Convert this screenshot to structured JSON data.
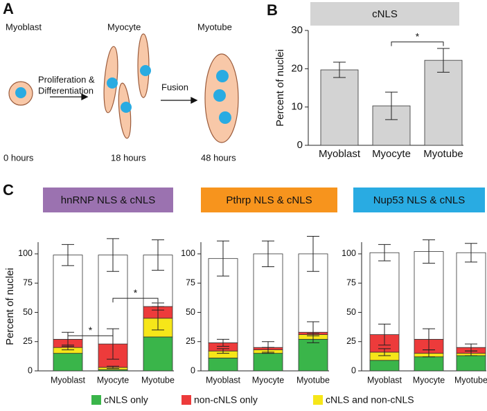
{
  "panel_labels": [
    "A",
    "B",
    "C"
  ],
  "panel_a": {
    "stages": [
      "Myoblast",
      "Myocyte",
      "Myotube"
    ],
    "times": [
      "0 hours",
      "18 hours",
      "48 hours"
    ],
    "arrows": [
      "Proliferation &",
      "Differentiation",
      "Fusion"
    ]
  },
  "chart_data": [
    {
      "type": "bar",
      "title": "cNLS",
      "title_color": "#d4d4d4",
      "ylabel": "Percent of nuclei",
      "categories": [
        "Myoblast",
        "Myocyte",
        "Myotube"
      ],
      "values": [
        19.7,
        10.3,
        22.2
      ],
      "errors": [
        2,
        3.6,
        3.1
      ],
      "color": "#d3d3d3",
      "ylim": [
        0,
        30
      ],
      "yticks": [
        0,
        10,
        20,
        30
      ],
      "significance": [
        {
          "between": [
            1,
            2
          ],
          "label": "*",
          "y": 27
        }
      ]
    },
    {
      "type": "stacked_bar",
      "title": "hnRNP NLS & cNLS",
      "title_color": "#9b72b0",
      "ylabel": "Percent of nuclei",
      "categories": [
        "Myoblast",
        "Myocyte",
        "Myotube"
      ],
      "ylim": [
        0,
        110
      ],
      "yticks": [
        0,
        25,
        50,
        75,
        100
      ],
      "legend": true,
      "series": [
        {
          "name": "cNLS only",
          "color": "#3ab54a",
          "values": [
            15,
            1,
            29
          ]
        },
        {
          "name": "cNLS and non-cNLS",
          "color": "#f6e619",
          "values": [
            5,
            2,
            16
          ],
          "errors": [
            2,
            1,
            10
          ]
        },
        {
          "name": "non-cNLS only",
          "color": "#ed3b3b",
          "values": [
            7,
            20,
            10
          ],
          "errors": [
            6,
            13,
            3
          ]
        },
        {
          "color": "#ffffff",
          "values": [
            72,
            76,
            44
          ],
          "errors": [
            9,
            14,
            13
          ]
        }
      ],
      "significance": [
        {
          "between": [
            0,
            1
          ],
          "label": "*",
          "y": 30
        },
        {
          "between": [
            1,
            2
          ],
          "label": "*",
          "y": 62
        }
      ]
    },
    {
      "type": "stacked_bar",
      "title": "Pthrp NLS & cNLS",
      "title_color": "#f7941d",
      "categories": [
        "Myoblast",
        "Myocyte",
        "Myotube"
      ],
      "ylim": [
        0,
        110
      ],
      "yticks": [
        0,
        25,
        50,
        75,
        100
      ],
      "series": [
        {
          "name": "cNLS only",
          "color": "#3ab54a",
          "values": [
            11,
            15,
            27
          ]
        },
        {
          "name": "cNLS and non-cNLS",
          "color": "#f6e619",
          "values": [
            6,
            3,
            4
          ],
          "errors": [
            2,
            2,
            1
          ]
        },
        {
          "name": "non-cNLS only",
          "color": "#ed3b3b",
          "values": [
            7,
            2,
            2
          ],
          "errors": [
            3,
            5,
            9
          ]
        },
        {
          "color": "#ffffff",
          "values": [
            72,
            80,
            67
          ],
          "errors": [
            15,
            11,
            15
          ]
        }
      ]
    },
    {
      "type": "stacked_bar",
      "title": "Nup53 NLS & cNLS",
      "title_color": "#29abe2",
      "categories": [
        "Myoblast",
        "Myocyte",
        "Myotube"
      ],
      "ylim": [
        0,
        110
      ],
      "yticks": [
        0,
        25,
        50,
        75,
        100
      ],
      "series": [
        {
          "name": "cNLS only",
          "color": "#3ab54a",
          "values": [
            9,
            12,
            13
          ]
        },
        {
          "name": "cNLS and non-cNLS",
          "color": "#f6e619",
          "values": [
            7,
            3,
            2
          ],
          "errors": [
            3,
            3,
            2
          ]
        },
        {
          "name": "non-cNLS only",
          "color": "#ed3b3b",
          "values": [
            15,
            12,
            5
          ],
          "errors": [
            9,
            9,
            3
          ]
        },
        {
          "color": "#ffffff",
          "values": [
            70,
            75,
            81
          ],
          "errors": [
            7,
            10,
            8
          ]
        }
      ]
    }
  ]
}
